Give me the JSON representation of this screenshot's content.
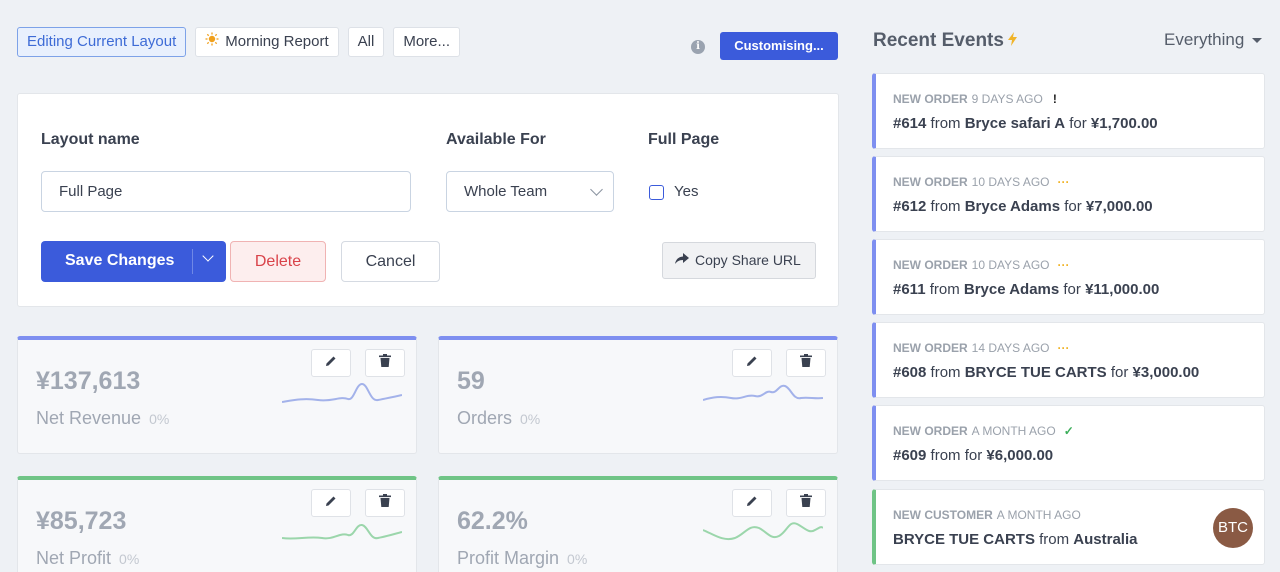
{
  "tabs": [
    {
      "label": "Editing Current Layout",
      "icon": ""
    },
    {
      "label": "Morning Report",
      "icon": "sun-icon"
    },
    {
      "label": "All",
      "icon": ""
    },
    {
      "label": "More...",
      "icon": ""
    }
  ],
  "header": {
    "customise_label": "Customising...",
    "info_icon": "i"
  },
  "form": {
    "layout_name_label": "Layout name",
    "layout_name_value": "Full Page",
    "available_for_label": "Available For",
    "available_for_value": "Whole Team",
    "full_page_label": "Full Page",
    "full_page_checkbox_label": "Yes",
    "save_label": "Save Changes",
    "delete_label": "Delete",
    "cancel_label": "Cancel",
    "share_label": "Copy Share URL"
  },
  "metrics": [
    {
      "value": "¥137,613",
      "name": "Net Revenue",
      "pct": "0%",
      "color": "#7e8ff0"
    },
    {
      "value": "59",
      "name": "Orders",
      "pct": "0%",
      "color": "#7e8ff0"
    },
    {
      "value": "¥85,723",
      "name": "Net Profit",
      "pct": "0%",
      "color": "#6fc486"
    },
    {
      "value": "62.2%",
      "name": "Profit Margin",
      "pct": "0%",
      "color": "#6fc486"
    }
  ],
  "events": {
    "title": "Recent Events",
    "filter": "Everything",
    "items": [
      {
        "type": "NEW ORDER",
        "time": "9 DAYS AGO",
        "status": "!",
        "id": "#614",
        "from": "from",
        "name": "Bryce safari A",
        "for": "for",
        "amount": "¥1,700.00"
      },
      {
        "type": "NEW ORDER",
        "time": "10 DAYS AGO",
        "status": "···",
        "id": "#612",
        "from": "from",
        "name": "Bryce Adams",
        "for": "for",
        "amount": "¥7,000.00"
      },
      {
        "type": "NEW ORDER",
        "time": "10 DAYS AGO",
        "status": "···",
        "id": "#611",
        "from": "from",
        "name": "Bryce Adams",
        "for": "for",
        "amount": "¥11,000.00"
      },
      {
        "type": "NEW ORDER",
        "time": "14 DAYS AGO",
        "status": "···",
        "id": "#608",
        "from": "from",
        "name": "BRYCE TUE CARTS",
        "for": "for",
        "amount": "¥3,000.00"
      },
      {
        "type": "NEW ORDER",
        "time": "A MONTH AGO",
        "status": "✓",
        "id": "#609",
        "from": "from",
        "name": "",
        "for": "for",
        "amount": "¥6,000.00"
      },
      {
        "type": "NEW CUSTOMER",
        "time": "A MONTH AGO",
        "status": "",
        "id": "",
        "from": "from",
        "name": "BRYCE TUE CARTS",
        "for": "",
        "amount": "Australia"
      }
    ],
    "avatar": "BTC"
  }
}
